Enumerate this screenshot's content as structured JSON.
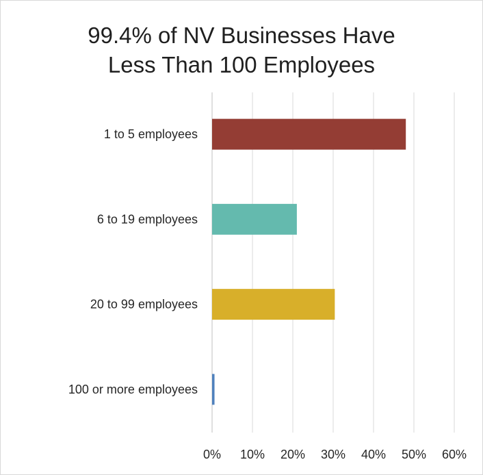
{
  "chart_data": {
    "type": "bar",
    "orientation": "horizontal",
    "title_lines": [
      "99.4% of NV Businesses Have",
      "Less Than 100 Employees"
    ],
    "categories": [
      "1 to 5 employees",
      "6 to 19 employees",
      "20 to 99 employees",
      "100 or more employees"
    ],
    "values": [
      48,
      21,
      30.4,
      0.6
    ],
    "colors": [
      "#943D34",
      "#64BAAE",
      "#D8AF2A",
      "#4F81BD"
    ],
    "xlim": [
      0,
      60
    ],
    "xticks": [
      "0%",
      "10%",
      "20%",
      "30%",
      "40%",
      "50%",
      "60%"
    ],
    "grid": true,
    "legend": "none"
  }
}
